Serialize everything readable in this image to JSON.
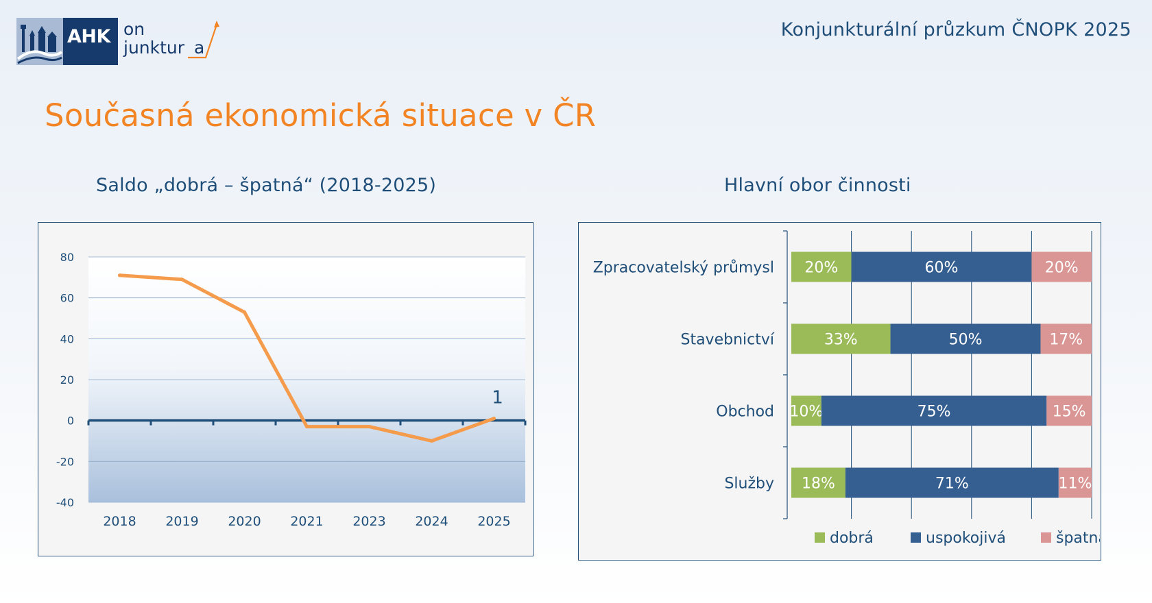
{
  "header": {
    "logo_primary": "AHK",
    "logo_on": "on",
    "logo_junktura": "junktur",
    "logo_junktura_tail": "a",
    "survey_title": "Konjunkturální průzkum ČNOPK 2025"
  },
  "page": {
    "title": "Současná ekonomická situace v ČR"
  },
  "colors": {
    "title_orange": "#f28424",
    "text_blue": "#1f4e79",
    "line_orange": "#f59b4c",
    "bar_good": "#9bbb59",
    "bar_satisfactory": "#365f91",
    "bar_bad": "#da9694",
    "gridline": "#8ea9c8",
    "area_fill": "#a9c0dc"
  },
  "chart_data": [
    {
      "id": "saldo",
      "type": "line",
      "title": "Saldo „dobrá – špatná“ (2018-2025)",
      "categories": [
        "2018",
        "2019",
        "2020",
        "2021",
        "2023",
        "2024",
        "2025"
      ],
      "series": [
        {
          "values": [
            71,
            69,
            53,
            -3,
            -3,
            -10,
            1
          ]
        }
      ],
      "data_labels": [
        {
          "index": 6,
          "text": "1"
        }
      ],
      "ylim": [
        -40,
        80
      ],
      "yticks": [
        "80",
        "60",
        "40",
        "20",
        "0",
        "-20",
        "-40"
      ],
      "grid": true,
      "legend": "none"
    },
    {
      "id": "obor",
      "type": "bar",
      "orientation": "horizontal",
      "stacked": "percent",
      "title": "Hlavní obor činnosti",
      "categories": [
        "Zpracovatelský průmysl",
        "Stavebnictví",
        "Obchod",
        "Služby"
      ],
      "series": [
        {
          "name": "dobrá",
          "values": [
            20,
            33,
            10,
            18
          ],
          "labels": [
            "20%",
            "33%",
            "10%",
            "18%"
          ],
          "color": "#9bbb59"
        },
        {
          "name": "uspokojivá",
          "values": [
            60,
            50,
            75,
            71
          ],
          "labels": [
            "60%",
            "50%",
            "75%",
            "71%"
          ],
          "color": "#365f91"
        },
        {
          "name": "špatná",
          "values": [
            20,
            17,
            15,
            11
          ],
          "labels": [
            "20%",
            "17%",
            "15%",
            "11%"
          ],
          "color": "#da9694"
        }
      ],
      "xlim": [
        0,
        100
      ],
      "grid": true,
      "legend": "bottom"
    }
  ]
}
